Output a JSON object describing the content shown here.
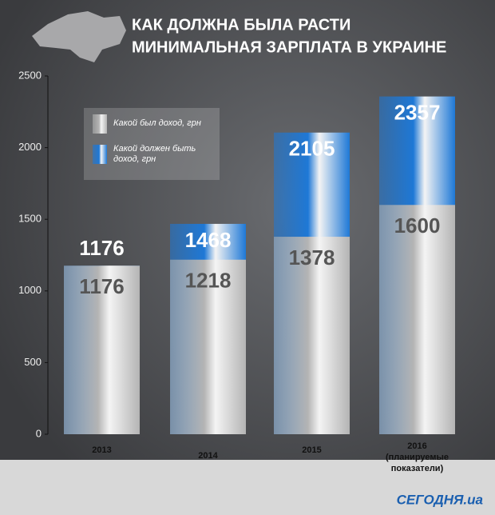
{
  "chart_data": {
    "type": "overlapping_bar",
    "title": "КАК ДОЛЖНА БЫЛА РАСТИ",
    "subtitle": "МИНИМАЛЬНАЯ ЗАРПЛАТА В УКРАИНЕ",
    "categories": [
      "2013",
      "2014",
      "2015",
      "2016 (планируемые показатели)"
    ],
    "series": [
      {
        "name": "Какой был доход, грн",
        "color": "#b4b4b4",
        "values": [
          1176,
          1218,
          1378,
          1600
        ]
      },
      {
        "name": "Какой должен быть доход, грн",
        "color": "#1e78d6",
        "values": [
          1176,
          1468,
          2105,
          2357
        ]
      }
    ],
    "ylim": [
      0,
      2500
    ],
    "yticks": [
      0,
      500,
      1000,
      1500,
      2000,
      2500
    ],
    "source": "СЕГОДНЯ.ua"
  }
}
